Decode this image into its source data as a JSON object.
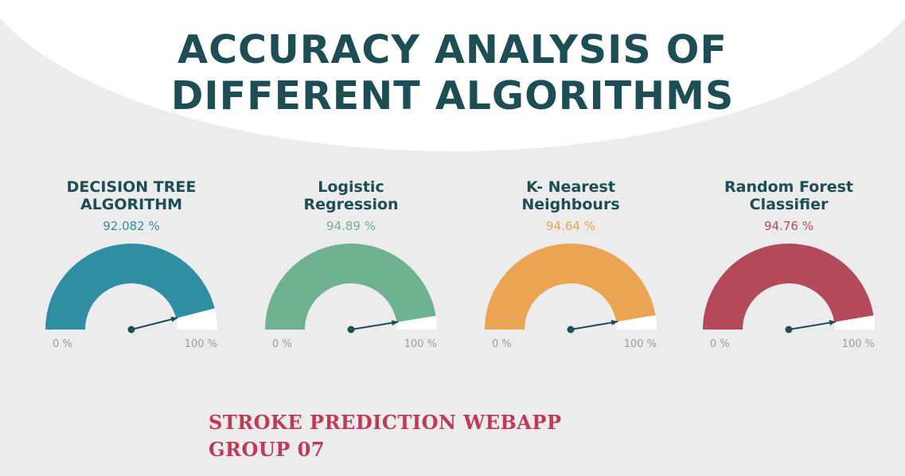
{
  "title": {
    "line1": "ACCURACY ANALYSIS OF",
    "line2": "DIFFERENT ALGORITHMS"
  },
  "colors": {
    "title": "#1d4d55",
    "needle": "#1d4d55",
    "background": "#ececec",
    "footer": "#c03a58"
  },
  "chart_data": [
    {
      "type": "gauge",
      "title_lines": [
        "DECISION TREE",
        "ALGORITHM"
      ],
      "value": 92.082,
      "value_label": "92.082 %",
      "min": 0,
      "max": 100,
      "min_label": "0 %",
      "max_label": "100 %",
      "color": "#2f8ea1"
    },
    {
      "type": "gauge",
      "title_lines": [
        "Logistic",
        "Regression"
      ],
      "value": 94.89,
      "value_label": "94.89 %",
      "min": 0,
      "max": 100,
      "min_label": "0 %",
      "max_label": "100 %",
      "color": "#6fb292"
    },
    {
      "type": "gauge",
      "title_lines": [
        "K- Nearest",
        "Neighbours"
      ],
      "value": 94.64,
      "value_label": "94.64 %",
      "min": 0,
      "max": 100,
      "min_label": "0 %",
      "max_label": "100 %",
      "color": "#eaa452"
    },
    {
      "type": "gauge",
      "title_lines": [
        "Random Forest",
        "Classifier"
      ],
      "value": 94.76,
      "value_label": "94.76 %",
      "min": 0,
      "max": 100,
      "min_label": "0 %",
      "max_label": "100 %",
      "color": "#b4495a"
    }
  ],
  "footer": {
    "line1": "STROKE PREDICTION  WEBAPP",
    "line2": "GROUP 07"
  }
}
